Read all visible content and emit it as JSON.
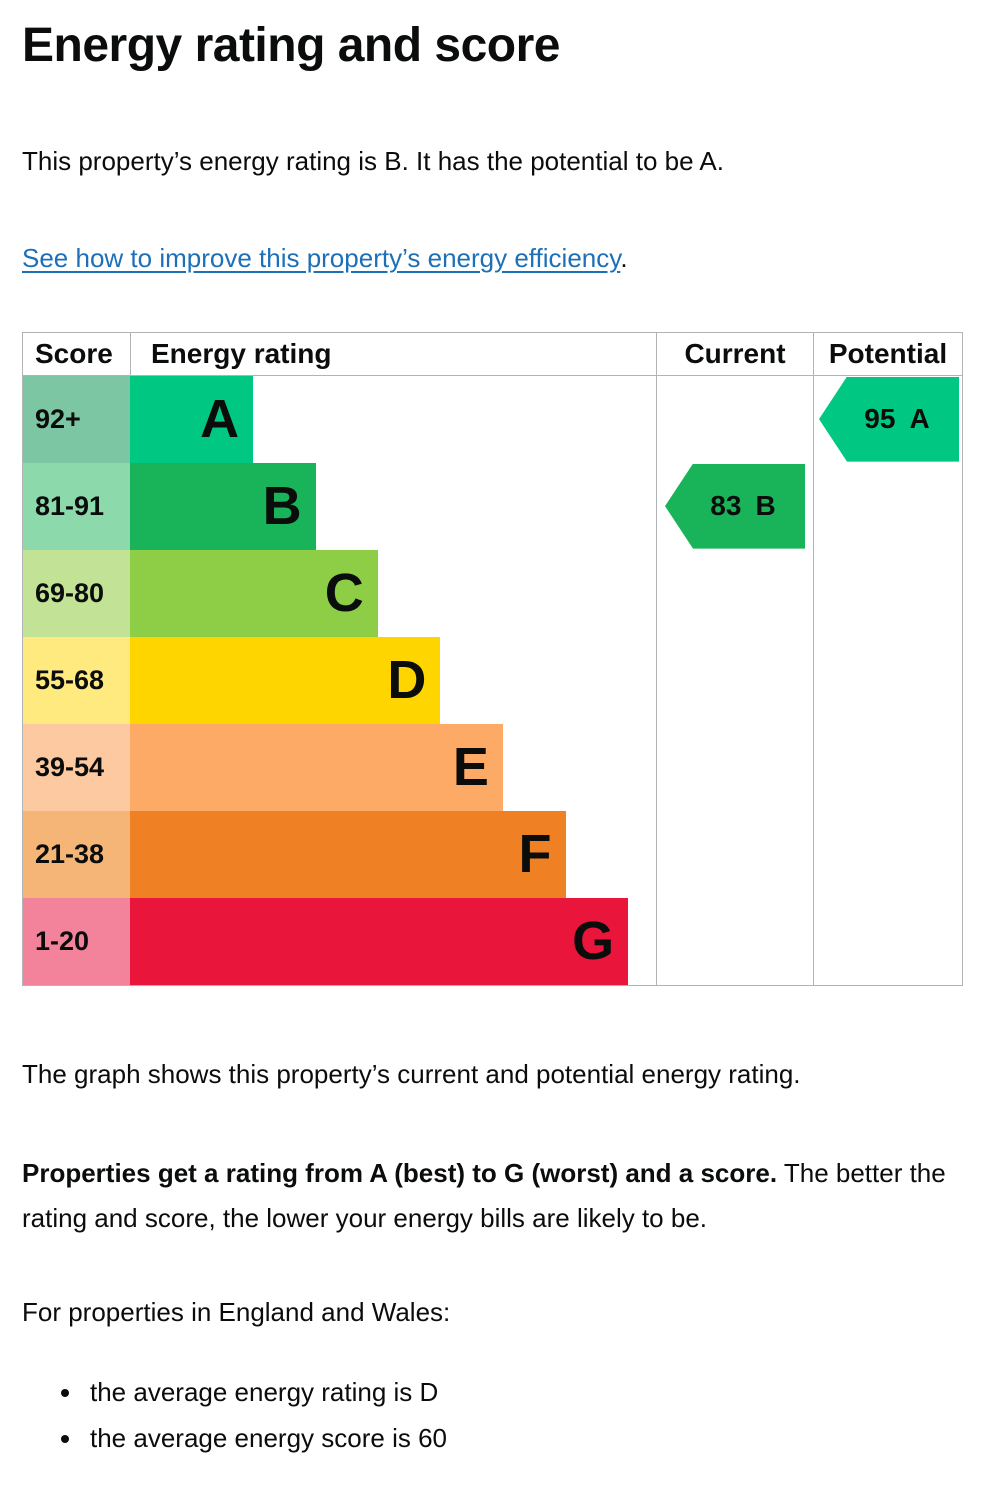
{
  "page": {
    "title": "Energy rating and score",
    "intro": "This property’s energy rating is B. It has the potential to be A.",
    "link_text": "See how to improve this property’s energy efficiency",
    "link_suffix": ".",
    "graph_caption": "The graph shows this property’s current and potential energy rating.",
    "explain_bold": "Properties get a rating from A (best) to G (worst) and a score.",
    "explain_rest": " The better the rating and score, the lower your energy bills are likely to be.",
    "region_line": "For properties in England and Wales:",
    "bullets": [
      "the average energy rating is D",
      "the average energy score is 60"
    ]
  },
  "colors": {
    "text": "#0b0c0c",
    "link": "#1d70b8",
    "table_border": "#b1b4b6"
  },
  "chart_data": {
    "type": "epc-energy-rating-bar",
    "columns": [
      "Score",
      "Energy rating",
      "Current",
      "Potential"
    ],
    "bands": [
      {
        "letter": "A",
        "score_range": "92+",
        "color": "#00c781",
        "tint": "#7cc6a3",
        "width_pct": 23.4
      },
      {
        "letter": "B",
        "score_range": "81-91",
        "color": "#19b459",
        "tint": "#8cd9ac",
        "width_pct": 35.3
      },
      {
        "letter": "C",
        "score_range": "69-80",
        "color": "#8dce46",
        "tint": "#c2e295",
        "width_pct": 47.1
      },
      {
        "letter": "D",
        "score_range": "55-68",
        "color": "#ffd500",
        "tint": "#ffea80",
        "width_pct": 59.0
      },
      {
        "letter": "E",
        "score_range": "39-54",
        "color": "#fcaa65",
        "tint": "#fcc9a0",
        "width_pct": 70.9
      },
      {
        "letter": "F",
        "score_range": "21-38",
        "color": "#ef8023",
        "tint": "#f5b577",
        "width_pct": 82.8
      },
      {
        "letter": "G",
        "score_range": "1-20",
        "color": "#e9153b",
        "tint": "#f2839a",
        "width_pct": 94.7
      }
    ],
    "current": {
      "score": "83",
      "band": "B",
      "color": "#19b459",
      "row": 1
    },
    "potential": {
      "score": "95",
      "band": "A",
      "color": "#00c781",
      "row": 0
    }
  }
}
